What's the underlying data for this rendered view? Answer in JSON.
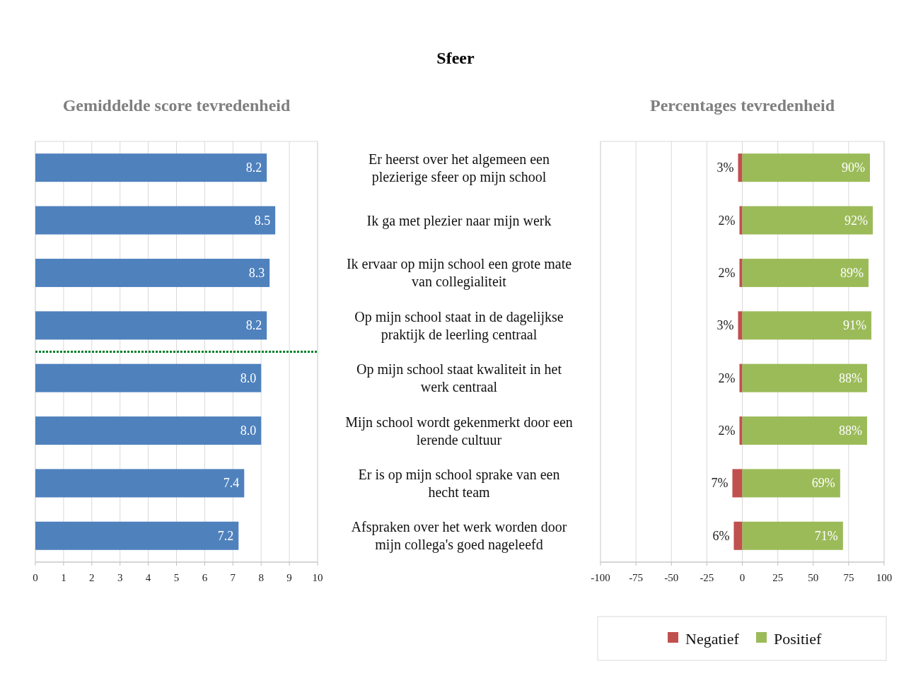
{
  "chart_data": [
    {
      "type": "bar",
      "orientation": "horizontal",
      "title": "Sfeer",
      "subtitle": "Gemiddelde score tevredenheid",
      "categories": [
        "Er heerst over het algemeen een plezierige sfeer op mijn school",
        "Ik ga met plezier naar mijn werk",
        "Ik ervaar op mijn school een grote mate van collegialiteit",
        "Op mijn school staat in de dagelijkse praktijk de leerling centraal",
        "Op mijn school staat kwaliteit in het werk centraal",
        "Mijn school wordt gekenmerkt door een lerende cultuur",
        "Er is op mijn school sprake van een hecht team",
        "Afspraken over het werk worden door mijn collega's goed nageleefd"
      ],
      "values": [
        8.2,
        8.5,
        8.3,
        8.2,
        8.0,
        8.0,
        7.4,
        7.2
      ],
      "value_labels": [
        "8.2",
        "8.5",
        "8.3",
        "8.2",
        "8.0",
        "8.0",
        "7.4",
        "7.2"
      ],
      "color": "#4f81bd",
      "xlim": [
        0,
        10
      ],
      "xticks": [
        0,
        1,
        2,
        3,
        4,
        5,
        6,
        7,
        8,
        9,
        10
      ],
      "grid": "x",
      "ref_lines": [
        {
          "axis": "y",
          "value": "Op mijn school staat in de dagelijkse praktijk de leerling centraal",
          "color": "#00802b",
          "line_style": "dotted"
        }
      ]
    },
    {
      "type": "bar",
      "orientation": "horizontal",
      "title": "Percentages tevredenheid",
      "categories": [
        null,
        null,
        null,
        null,
        null,
        null,
        null,
        null
      ],
      "series": [
        {
          "name": "Negatief",
          "color": "#c0504d",
          "values": [
            3,
            2,
            2,
            3,
            2,
            2,
            7,
            6
          ],
          "base": [
            -3,
            -2,
            -2,
            -3,
            -2,
            -2,
            -7,
            -6
          ],
          "value_labels": [
            "3%",
            "2%",
            "2%",
            "3%",
            "2%",
            "2%",
            "7%",
            "6%"
          ]
        },
        {
          "name": "Positief",
          "color": "#9bbb59",
          "values": [
            90,
            92,
            89,
            91,
            88,
            88,
            69,
            71
          ],
          "value_labels": [
            "90%",
            "92%",
            "89%",
            "91%",
            "88%",
            "88%",
            "69%",
            "71%"
          ]
        }
      ],
      "xlim": [
        -100,
        100
      ],
      "xticks": [
        -100,
        -75,
        -50,
        -25,
        0,
        25,
        50,
        75,
        100
      ],
      "grid": "x",
      "legend": "bottom"
    }
  ]
}
